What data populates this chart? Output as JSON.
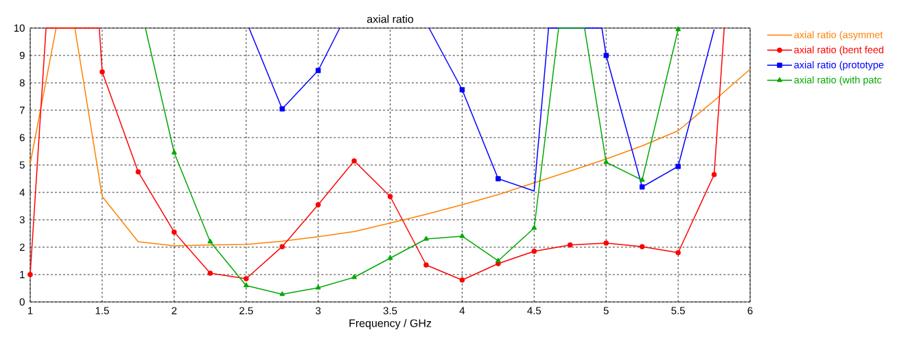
{
  "chart_data": {
    "type": "line",
    "title": "axial ratio",
    "xlabel": "Frequency / GHz",
    "xlim": [
      1,
      6
    ],
    "xticks": [
      1,
      1.5,
      2,
      2.5,
      3,
      3.5,
      4,
      4.5,
      5,
      5.5,
      6
    ],
    "ylim": [
      0,
      10
    ],
    "yticks": [
      0,
      1,
      2,
      3,
      4,
      5,
      6,
      7,
      8,
      9,
      10
    ],
    "grid": true,
    "legend": "right",
    "series": [
      {
        "name": "axial ratio (asymmet",
        "color": "#ff8000",
        "marker": "none",
        "x": [
          1,
          1.18,
          1.31,
          1.5,
          1.75,
          2,
          2.25,
          2.5,
          2.75,
          3,
          3.25,
          3.5,
          3.75,
          4,
          4.25,
          4.5,
          4.75,
          5,
          5.25,
          5.5,
          5.75,
          6
        ],
        "values": [
          5.05,
          10,
          10,
          3.85,
          2.2,
          2.05,
          2.08,
          2.1,
          2.22,
          2.38,
          2.57,
          2.88,
          3.2,
          3.55,
          3.92,
          4.35,
          4.78,
          5.22,
          5.7,
          6.25,
          7.35,
          8.5
        ]
      },
      {
        "name": "axial ratio (bent feed",
        "color": "#ff0000",
        "marker": "circle",
        "x": [
          1,
          1.11,
          1.48,
          1.5,
          1.75,
          2,
          2.25,
          2.5,
          2.75,
          3,
          3.25,
          3.5,
          3.75,
          4,
          4.25,
          4.5,
          4.75,
          5,
          5.25,
          5.5,
          5.75,
          5.82
        ],
        "values": [
          1,
          10,
          10,
          8.4,
          4.75,
          2.55,
          1.05,
          0.85,
          2.02,
          3.55,
          5.15,
          3.85,
          1.35,
          0.8,
          1.4,
          1.85,
          2.08,
          2.15,
          2.02,
          1.8,
          4.65,
          10
        ]
      },
      {
        "name": "axial ratio (prototype",
        "color": "#0000ff",
        "marker": "square",
        "x": [
          2.52,
          2.75,
          3,
          3.15,
          null,
          3.77,
          4,
          4.25,
          4.5,
          4.6,
          4.97,
          5,
          5.25,
          5.5,
          5.75
        ],
        "values": [
          10,
          7.05,
          8.45,
          10,
          null,
          10,
          7.75,
          4.5,
          4.05,
          10,
          10,
          9.0,
          4.2,
          4.95,
          9.95
        ]
      },
      {
        "name": "axial ratio (with patc",
        "color": "#00a800",
        "marker": "triangle",
        "x": [
          1.8,
          2,
          2.25,
          2.5,
          2.75,
          3,
          3.25,
          3.5,
          3.75,
          4,
          4.25,
          4.5,
          4.67,
          4.85,
          5,
          5.25,
          5.5
        ],
        "values": [
          10,
          5.45,
          2.2,
          0.6,
          0.28,
          0.52,
          0.9,
          1.6,
          2.3,
          2.4,
          1.5,
          2.7,
          10,
          10,
          5.1,
          4.45,
          9.95
        ]
      }
    ]
  }
}
